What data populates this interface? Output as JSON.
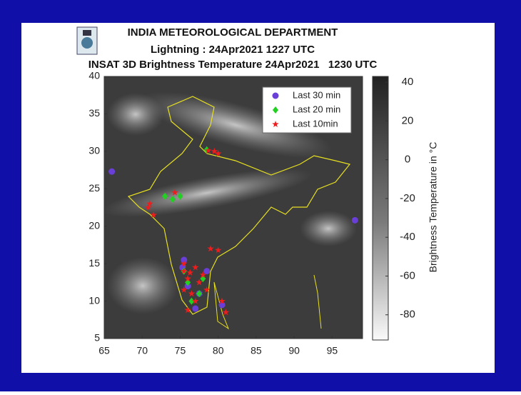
{
  "header": {
    "org": "INDIA METEOROLOGICAL DEPARTMENT",
    "line1": "Lightning : 24Apr2021 1227 UTC",
    "line2": "INSAT 3D Brightness Temperature 24Apr2021   1230 UTC"
  },
  "map": {
    "xlim": [
      65,
      99
    ],
    "ylim": [
      5,
      40
    ],
    "xticks": [
      65,
      70,
      75,
      80,
      85,
      90,
      95
    ],
    "yticks": [
      5,
      10,
      15,
      20,
      25,
      30,
      35,
      40
    ],
    "series": [
      {
        "name": "Last 30 min",
        "color": "#6a3fd8",
        "marker": "circle",
        "lon": [
          66,
          98,
          75.5,
          76,
          77,
          80.5,
          75.3,
          78.5,
          77.5
        ],
        "lat": [
          27.3,
          20.8,
          15.5,
          12,
          9,
          9.5,
          14.5,
          14,
          11
        ]
      },
      {
        "name": "Last 20 min",
        "color": "#22d022",
        "marker": "diamond",
        "lon": [
          78.5,
          73,
          74,
          75,
          76,
          77.5,
          78,
          75.5,
          76.5
        ],
        "lat": [
          30.2,
          24,
          23.6,
          24,
          12.5,
          11,
          13,
          14,
          10
        ]
      },
      {
        "name": "Last 10min",
        "color": "#ee1c1c",
        "marker": "star",
        "lon": [
          79.5,
          80,
          78.7,
          71,
          70.8,
          71.5,
          75.5,
          75.5,
          76,
          77,
          78,
          77.5,
          75.5,
          76.5,
          77,
          78.5,
          79,
          80.5,
          81,
          76,
          80,
          74.3,
          76.3
        ],
        "lat": [
          30,
          29.7,
          30.1,
          23,
          22.5,
          21.5,
          15,
          14,
          13,
          14.5,
          13.5,
          12.5,
          11.5,
          11,
          10,
          11.5,
          17,
          10,
          8.5,
          8.8,
          16.8,
          24.5,
          13.8
        ]
      }
    ]
  },
  "colorbar": {
    "label": "Brightness Temperature in °C",
    "clim": [
      -93,
      43
    ],
    "ticks": [
      40,
      20,
      0,
      -20,
      -40,
      -60,
      -80
    ]
  }
}
